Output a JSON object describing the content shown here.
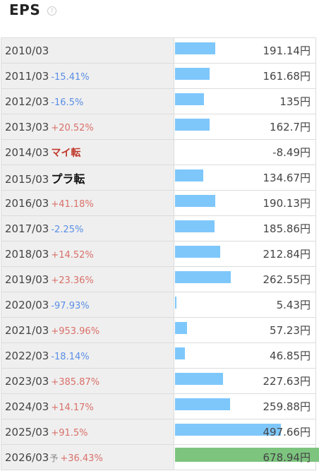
{
  "section": {
    "title": "EPS",
    "help_icon": "question-circle-icon"
  },
  "rows": [
    {
      "year": "2010/03",
      "change": "",
      "value": "191.14",
      "eps": 191.14
    },
    {
      "year": "2011/03",
      "change": "-15.41%",
      "value": "161.68",
      "eps": 161.68
    },
    {
      "year": "2012/03",
      "change": "-16.5%",
      "value": "135",
      "eps": 135
    },
    {
      "year": "2013/03",
      "change": "+20.52%",
      "value": "162.7",
      "eps": 162.7
    },
    {
      "year": "2014/03",
      "change": "",
      "special": "マイ転",
      "value": "-8.49",
      "eps": -8.49
    },
    {
      "year": "2015/03",
      "change": "",
      "special": "プラ転",
      "value": "134.67",
      "eps": 134.67
    },
    {
      "year": "2016/03",
      "change": "+41.18%",
      "value": "190.13",
      "eps": 190.13
    },
    {
      "year": "2017/03",
      "change": "-2.25%",
      "value": "185.86",
      "eps": 185.86
    },
    {
      "year": "2018/03",
      "change": "+14.52%",
      "value": "212.84",
      "eps": 212.84
    },
    {
      "year": "2019/03",
      "change": "+23.36%",
      "value": "262.55",
      "eps": 262.55
    },
    {
      "year": "2020/03",
      "change": "-97.93%",
      "value": "5.43",
      "eps": 5.43
    },
    {
      "year": "2021/03",
      "change": "+953.96%",
      "value": "57.23",
      "eps": 57.23
    },
    {
      "year": "2022/03",
      "change": "-18.14%",
      "value": "46.85",
      "eps": 46.85
    },
    {
      "year": "2023/03",
      "change": "+385.87%",
      "value": "227.63",
      "eps": 227.63
    },
    {
      "year": "2024/03",
      "change": "+14.17%",
      "value": "259.88",
      "eps": 259.88
    },
    {
      "year": "2025/03",
      "change": "+91.5%",
      "value": "497.66",
      "eps": 497.66
    },
    {
      "year": "2026/03",
      "forecast_mark": "予",
      "change": "+36.43%",
      "value": "678.94",
      "eps": 678.94,
      "forecast": true
    }
  ],
  "currency": "円",
  "colors": {
    "bar": "#7ec7fb",
    "forecast_bar": "#7dc47f",
    "positive": "#d9706a",
    "negative": "#5a8ee6"
  },
  "chart_data": {
    "type": "bar",
    "categories": [
      "2010/03",
      "2011/03",
      "2012/03",
      "2013/03",
      "2014/03",
      "2015/03",
      "2016/03",
      "2017/03",
      "2018/03",
      "2019/03",
      "2020/03",
      "2021/03",
      "2022/03",
      "2023/03",
      "2024/03",
      "2025/03",
      "2026/03"
    ],
    "values": [
      191.14,
      161.68,
      135,
      162.7,
      -8.49,
      134.67,
      190.13,
      185.86,
      212.84,
      262.55,
      5.43,
      57.23,
      46.85,
      227.63,
      259.88,
      497.66,
      678.94
    ],
    "title": "EPS",
    "xlabel": "",
    "ylabel": ""
  }
}
